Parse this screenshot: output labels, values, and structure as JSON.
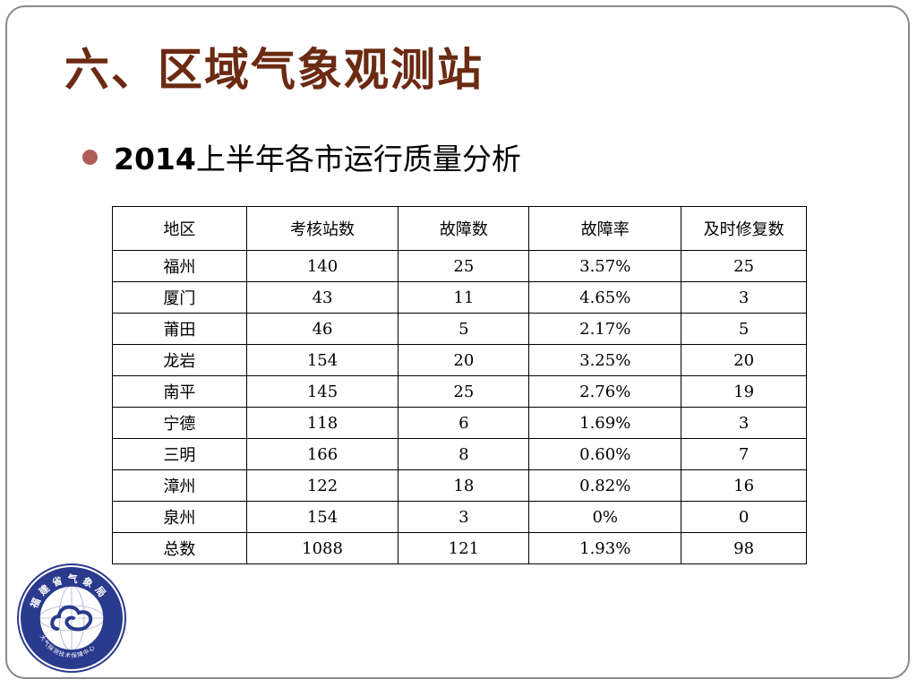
{
  "title": "六、区域气象观测站",
  "subtitle": {
    "number": "2014",
    "text": "上半年各市运行质量分析"
  },
  "table": {
    "headers": [
      "地区",
      "考核站数",
      "故障数",
      "故障率",
      "及时修复数"
    ],
    "rows": [
      [
        "福州",
        "140",
        "25",
        "3.57%",
        "25"
      ],
      [
        "厦门",
        "43",
        "11",
        "4.65%",
        "3"
      ],
      [
        "莆田",
        "46",
        "5",
        "2.17%",
        "5"
      ],
      [
        "龙岩",
        "154",
        "20",
        "3.25%",
        "20"
      ],
      [
        "南平",
        "145",
        "25",
        "2.76%",
        "19"
      ],
      [
        "宁德",
        "118",
        "6",
        "1.69%",
        "3"
      ],
      [
        "三明",
        "166",
        "8",
        "0.60%",
        "7"
      ],
      [
        "漳州",
        "122",
        "18",
        "0.82%",
        "16"
      ],
      [
        "泉州",
        "154",
        "3",
        "0%",
        "0"
      ],
      [
        "总数",
        "1088",
        "121",
        "1.93%",
        "98"
      ]
    ]
  },
  "logo": {
    "top_text": "福建省气象局",
    "bottom_text": "大气探测技术保障中心",
    "colors": {
      "ring": "#2a3a8c",
      "outer": "#ffffff",
      "inner": "#ffffff",
      "cloud": "#2a3a8c"
    }
  },
  "colors": {
    "title": "#6b2a12",
    "bullet": "#b05d5a",
    "frame": "#8a8a8a"
  }
}
